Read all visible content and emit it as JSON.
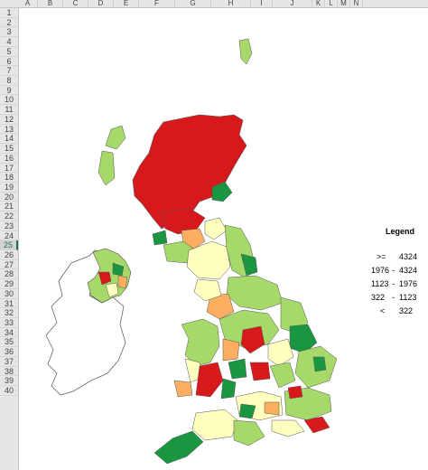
{
  "columns": [
    "A",
    "B",
    "C",
    "D",
    "E",
    "F",
    "G",
    "H",
    "I",
    "J",
    "K",
    "L",
    "M",
    "N"
  ],
  "rows": [
    "1",
    "2",
    "3",
    "4",
    "5",
    "6",
    "7",
    "8",
    "9",
    "10",
    "11",
    "12",
    "13",
    "14",
    "15",
    "16",
    "17",
    "18",
    "19",
    "20",
    "21",
    "22",
    "23",
    "24",
    "25",
    "26",
    "27",
    "28",
    "29",
    "30",
    "31",
    "32",
    "33",
    "34",
    "35",
    "36",
    "37",
    "38",
    "39",
    "40"
  ],
  "active_row": "25",
  "legend": {
    "title": "Legend",
    "items": [
      {
        "op": ">=",
        "low": "",
        "high": "4324",
        "color": "#1a9641"
      },
      {
        "op": "",
        "low": "1976",
        "high": "4324",
        "color": "#a6d96a"
      },
      {
        "op": "",
        "low": "1123",
        "high": "1976",
        "color": "#ffffbf"
      },
      {
        "op": "",
        "low": "322",
        "high": "1123",
        "color": "#fdae61"
      },
      {
        "op": "<",
        "low": "",
        "high": "322",
        "color": "#d7191c"
      }
    ],
    "dash": "-"
  },
  "colors": {
    "red": "#d7191c",
    "orange": "#fdae61",
    "yellow": "#ffffbf",
    "lightgreen": "#a6d96a",
    "green": "#1a9641",
    "outline": "#555555"
  }
}
